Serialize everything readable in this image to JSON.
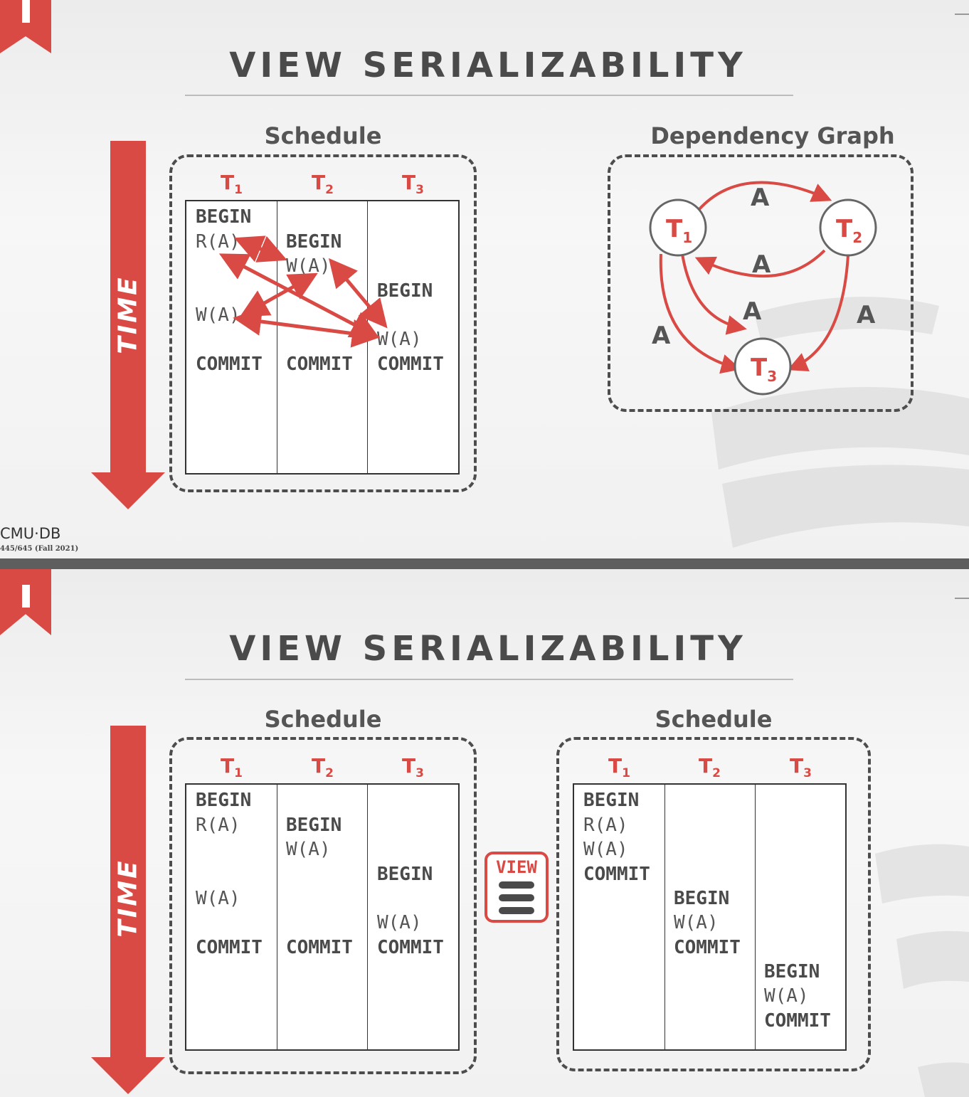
{
  "slide1": {
    "title": "VIEW SERIALIZABILITY",
    "schedule_label": "Schedule",
    "graph_label": "Dependency Graph",
    "time_label": "TIME",
    "transactions": [
      "T",
      "T",
      "T"
    ],
    "subscripts": [
      "1",
      "2",
      "3"
    ],
    "t1_ops": [
      "BEGIN",
      "R(A)",
      "W(A)",
      "COMMIT"
    ],
    "t2_ops": [
      "BEGIN",
      "W(A)",
      "COMMIT"
    ],
    "t3_ops": [
      "BEGIN",
      "W(A)",
      "COMMIT"
    ],
    "graph": {
      "nodes": [
        "T",
        "T",
        "T"
      ],
      "node_subs": [
        "1",
        "2",
        "3"
      ],
      "edge_label": "A"
    },
    "footer_logo": "CMU·DB",
    "footer_course": "445/645 (Fall 2021)"
  },
  "slide2": {
    "title": "VIEW SERIALIZABILITY",
    "schedule_label_left": "Schedule",
    "schedule_label_right": "Schedule",
    "time_label": "TIME",
    "view_badge": "VIEW",
    "left": {
      "t1_ops": [
        "BEGIN",
        "R(A)",
        "W(A)",
        "COMMIT"
      ],
      "t2_ops": [
        "BEGIN",
        "W(A)",
        "COMMIT"
      ],
      "t3_ops": [
        "BEGIN",
        "W(A)",
        "COMMIT"
      ]
    },
    "right": {
      "t1_ops": [
        "BEGIN",
        "R(A)",
        "W(A)",
        "COMMIT"
      ],
      "t2_ops": [
        "BEGIN",
        "W(A)",
        "COMMIT"
      ],
      "t3_ops": [
        "BEGIN",
        "W(A)",
        "COMMIT"
      ]
    }
  },
  "colors": {
    "accent": "#d94a45",
    "text": "#4a4a4a",
    "border": "#4d4d4d"
  },
  "icons": [
    "bookmark-icon",
    "time-arrow-icon",
    "equivalence-icon"
  ]
}
